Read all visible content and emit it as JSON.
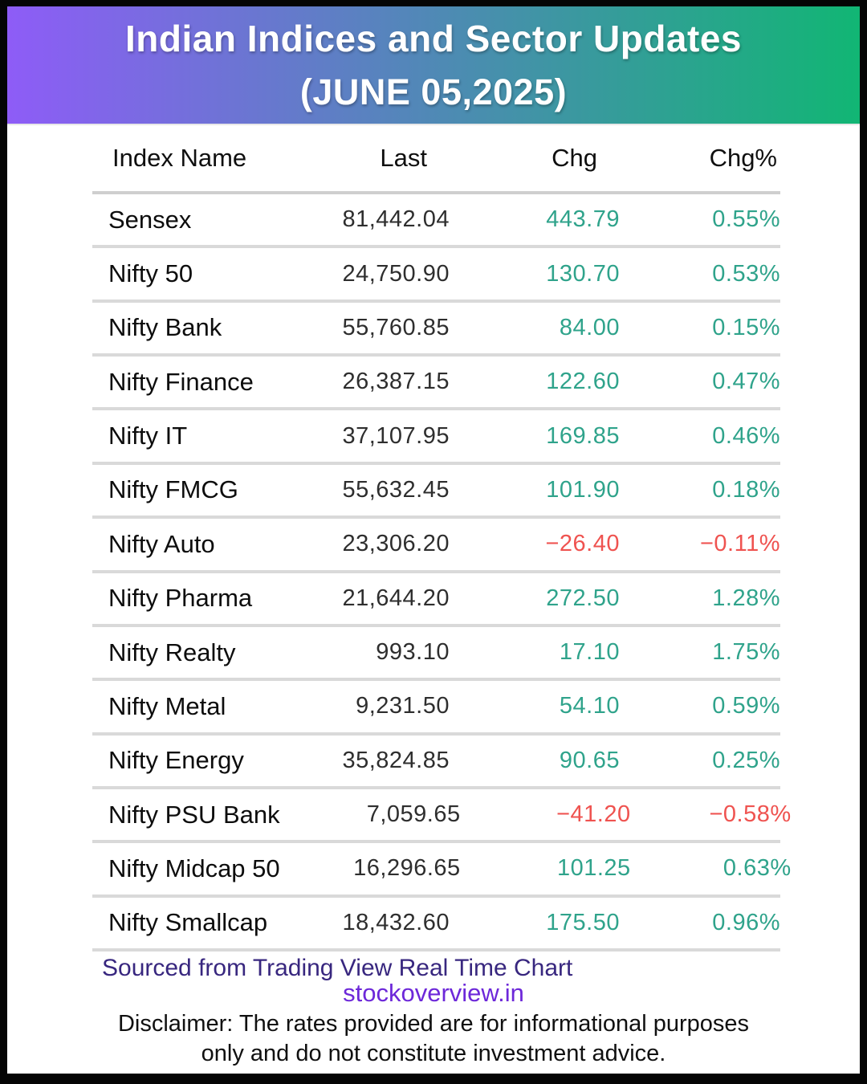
{
  "colors": {
    "header_grad_start": "#8e5cf7",
    "header_grad_end": "#11b674",
    "positive": "#2fa38b",
    "negative": "#ef5350",
    "source_text": "#38277f",
    "site_text": "#6d28d9",
    "frame": "#050505",
    "separator": "#d9d9d9"
  },
  "chart_data": {
    "type": "table",
    "title": "Indian Indices and Sector Updates",
    "subtitle": "(JUNE 05,2025)",
    "columns": [
      "Index Name",
      "Last",
      "Chg",
      "Chg%"
    ],
    "rows": [
      {
        "name": "Sensex",
        "last": "81,442.04",
        "chg": "443.79",
        "chg_pct": "0.55%",
        "direction": "up"
      },
      {
        "name": "Nifty 50",
        "last": "24,750.90",
        "chg": "130.70",
        "chg_pct": "0.53%",
        "direction": "up"
      },
      {
        "name": "Nifty Bank",
        "last": "55,760.85",
        "chg": "84.00",
        "chg_pct": "0.15%",
        "direction": "up"
      },
      {
        "name": "Nifty Finance",
        "last": "26,387.15",
        "chg": "122.60",
        "chg_pct": "0.47%",
        "direction": "up"
      },
      {
        "name": "Nifty IT",
        "last": "37,107.95",
        "chg": "169.85",
        "chg_pct": "0.46%",
        "direction": "up"
      },
      {
        "name": "Nifty FMCG",
        "last": "55,632.45",
        "chg": "101.90",
        "chg_pct": "0.18%",
        "direction": "up"
      },
      {
        "name": "Nifty Auto",
        "last": "23,306.20",
        "chg": "−26.40",
        "chg_pct": "−0.11%",
        "direction": "down"
      },
      {
        "name": "Nifty Pharma",
        "last": "21,644.20",
        "chg": "272.50",
        "chg_pct": "1.28%",
        "direction": "up"
      },
      {
        "name": "Nifty Realty",
        "last": "993.10",
        "chg": "17.10",
        "chg_pct": "1.75%",
        "direction": "up"
      },
      {
        "name": "Nifty Metal",
        "last": "9,231.50",
        "chg": "54.10",
        "chg_pct": "0.59%",
        "direction": "up"
      },
      {
        "name": "Nifty Energy",
        "last": "35,824.85",
        "chg": "90.65",
        "chg_pct": "0.25%",
        "direction": "up"
      },
      {
        "name": "Nifty PSU Bank",
        "last": "7,059.65",
        "chg": "−41.20",
        "chg_pct": "−0.58%",
        "direction": "down"
      },
      {
        "name": "Nifty Midcap 50",
        "last": "16,296.65",
        "chg": "101.25",
        "chg_pct": "0.63%",
        "direction": "up"
      },
      {
        "name": "Nifty Smallcap",
        "last": "18,432.60",
        "chg": "175.50",
        "chg_pct": "0.96%",
        "direction": "up"
      }
    ]
  },
  "footer": {
    "source_line": "Sourced from Trading View Real Time Chart",
    "site": "stockoverview.in",
    "disclaimer_line1": "Disclaimer: The rates provided are for informational purposes",
    "disclaimer_line2": "only and do not constitute investment advice."
  }
}
